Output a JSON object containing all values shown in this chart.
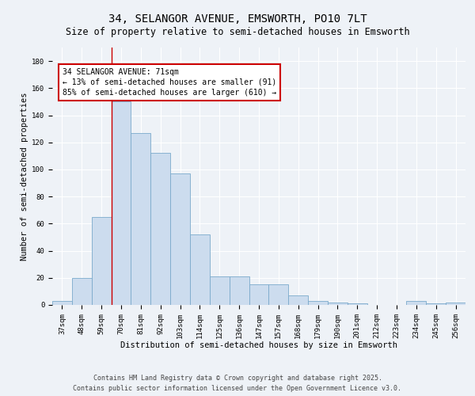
{
  "title": "34, SELANGOR AVENUE, EMSWORTH, PO10 7LT",
  "subtitle": "Size of property relative to semi-detached houses in Emsworth",
  "xlabel": "Distribution of semi-detached houses by size in Emsworth",
  "ylabel": "Number of semi-detached properties",
  "categories": [
    "37sqm",
    "48sqm",
    "59sqm",
    "70sqm",
    "81sqm",
    "92sqm",
    "103sqm",
    "114sqm",
    "125sqm",
    "136sqm",
    "147sqm",
    "157sqm",
    "168sqm",
    "179sqm",
    "190sqm",
    "201sqm",
    "212sqm",
    "223sqm",
    "234sqm",
    "245sqm",
    "256sqm"
  ],
  "values": [
    3,
    20,
    65,
    150,
    127,
    112,
    97,
    52,
    21,
    21,
    15,
    15,
    7,
    3,
    2,
    1,
    0,
    0,
    3,
    1,
    2
  ],
  "bar_color": "#ccdcee",
  "bar_edge_color": "#7aaacb",
  "red_line_index": 3,
  "property_name": "34 SELANGOR AVENUE: 71sqm",
  "pct_smaller": 13,
  "n_smaller": 91,
  "pct_larger": 85,
  "n_larger": 610,
  "ylim": [
    0,
    190
  ],
  "yticks": [
    0,
    20,
    40,
    60,
    80,
    100,
    120,
    140,
    160,
    180
  ],
  "footer_line1": "Contains HM Land Registry data © Crown copyright and database right 2025.",
  "footer_line2": "Contains public sector information licensed under the Open Government Licence v3.0.",
  "bg_color": "#eef2f7",
  "grid_color": "#ffffff",
  "title_fontsize": 10,
  "subtitle_fontsize": 8.5,
  "axis_label_fontsize": 7.5,
  "tick_fontsize": 6.5,
  "annotation_fontsize": 7,
  "footer_fontsize": 6
}
